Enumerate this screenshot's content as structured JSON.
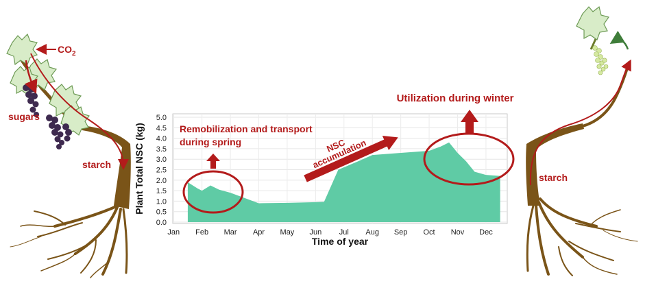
{
  "colors": {
    "area": "#5fcba5",
    "annotation": "#b31b1b",
    "wood": "#7a5418",
    "leaf": "#d8ecc8",
    "leaf_stroke": "#6d9a55",
    "grape": "#3e2a4f",
    "young_grape": "#d5e9a0"
  },
  "chart_data": {
    "type": "area",
    "x_categories": [
      "Jan",
      "Feb",
      "Mar",
      "Apr",
      "May",
      "Jun",
      "Jul",
      "Aug",
      "Sep",
      "Oct",
      "Nov",
      "Dec"
    ],
    "xlabel": "Time of year",
    "ylabel": "Plant Total NSC (kg)",
    "ylim": [
      0,
      5
    ],
    "yticks": [
      "0.0",
      "0.5",
      "1.0",
      "1.5",
      "2.0",
      "2.5",
      "3.0",
      "3.5",
      "4.0",
      "4.5",
      "5.0"
    ],
    "grid": true,
    "series": [
      {
        "x": [
          0.5,
          0.85,
          1.0,
          1.3,
          1.6,
          2.0,
          2.4,
          3.0,
          4.0,
          5.0,
          5.3,
          5.8,
          6.5,
          7.0,
          8.0,
          9.0,
          9.4,
          9.7,
          10.0,
          10.3,
          10.6,
          11.0,
          11.5
        ],
        "y": [
          1.9,
          1.6,
          1.5,
          1.75,
          1.55,
          1.4,
          1.2,
          0.9,
          0.92,
          0.95,
          0.97,
          2.5,
          2.9,
          3.2,
          3.3,
          3.4,
          3.6,
          3.8,
          3.3,
          2.9,
          2.4,
          2.25,
          2.2
        ]
      }
    ]
  },
  "annotations": {
    "remobilization_line1": "Remobilization and transport",
    "remobilization_line2": "during spring",
    "accumulation_line1": "NSC",
    "accumulation_line2": "accumulation",
    "utilization": "Utilization during winter"
  },
  "left_vine": {
    "co2_main": "CO",
    "co2_sub": "2",
    "sugars": "sugars",
    "starch": "starch"
  },
  "right_vine": {
    "starch": "starch"
  }
}
